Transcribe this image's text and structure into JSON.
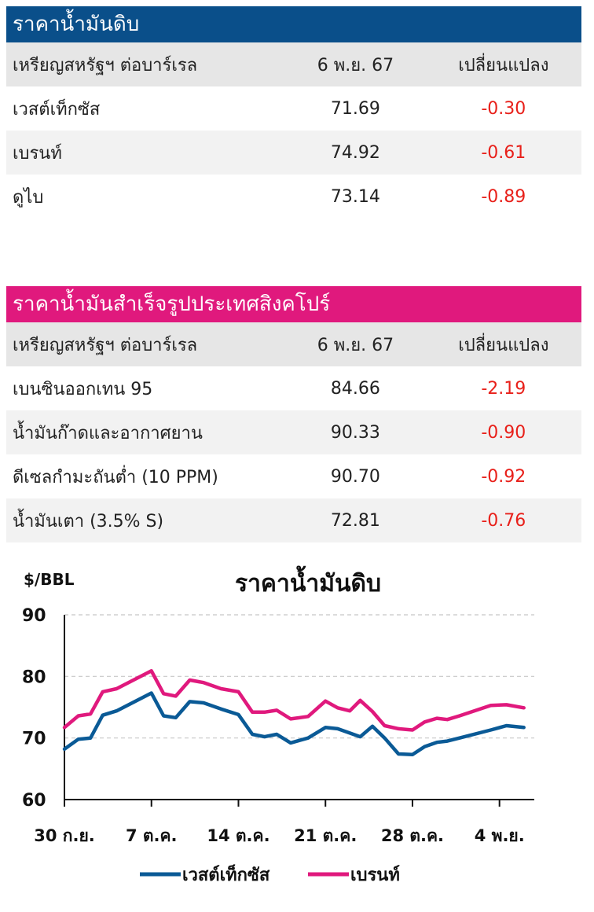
{
  "crude_table": {
    "title": "ราคาน้ำมันดิบ",
    "header": {
      "name": "เหรียญสหรัฐฯ ต่อบาร์เรล",
      "date": "6 พ.ย. 67",
      "change": "เปลี่ยนแปลง"
    },
    "rows": [
      {
        "name": "เวสต์เท็กซัส",
        "value": "71.69",
        "change": "-0.30"
      },
      {
        "name": "เบรนท์",
        "value": "74.92",
        "change": "-0.61"
      },
      {
        "name": "ดูไบ",
        "value": "73.14",
        "change": "-0.89"
      }
    ]
  },
  "refined_table": {
    "title": "ราคาน้ำมันสำเร็จรูปประเทศสิงคโปร์",
    "header": {
      "name": "เหรียญสหรัฐฯ ต่อบาร์เรล",
      "date": "6 พ.ย. 67",
      "change": "เปลี่ยนแปลง"
    },
    "rows": [
      {
        "name": "เบนซินออกเทน 95",
        "value": "84.66",
        "change": "-2.19"
      },
      {
        "name": "น้ำมันก๊าดและอากาศยาน",
        "value": "90.33",
        "change": "-0.90"
      },
      {
        "name": "ดีเซลกำมะถันต่ำ (10 PPM)",
        "value": "90.70",
        "change": "-0.92"
      },
      {
        "name": "น้ำมันเตา (3.5% S)",
        "value": "72.81",
        "change": "-0.76"
      }
    ]
  },
  "colors": {
    "crude_header": "#0a4f8a",
    "refined_header": "#e0197d",
    "negative": "#e8201a",
    "wti_line": "#0a5a96",
    "brent_line": "#e0197d"
  },
  "chart_data": {
    "type": "line",
    "title": "ราคาน้ำมันดิบ",
    "ylabel": "$/BBL",
    "ylim": [
      60,
      90
    ],
    "yticks": [
      60,
      70,
      80,
      90
    ],
    "xlim": [
      0,
      27
    ],
    "xticks": [
      {
        "x": 0,
        "label": "30 ก.ย."
      },
      {
        "x": 5,
        "label": "7 ต.ค."
      },
      {
        "x": 10,
        "label": "14 ต.ค."
      },
      {
        "x": 15,
        "label": "21 ต.ค."
      },
      {
        "x": 20,
        "label": "28 ต.ค."
      },
      {
        "x": 25,
        "label": "4 พ.ย."
      }
    ],
    "grid": "horizontal dashed",
    "legend_position": "bottom",
    "x": [
      0,
      0.8,
      1.5,
      2.2,
      3,
      5,
      5.7,
      6.4,
      7.2,
      8,
      9,
      10,
      10.8,
      11.5,
      12.2,
      13,
      14,
      15,
      15.7,
      16.4,
      17,
      17.7,
      18.4,
      19.2,
      20,
      20.7,
      21.4,
      22,
      22.7,
      24.5,
      25.4,
      26.4
    ],
    "series": [
      {
        "name": "เวสต์เท็กซัส",
        "values": [
          68.2,
          69.8,
          70.0,
          73.7,
          74.4,
          77.3,
          73.6,
          73.3,
          75.9,
          75.7,
          74.7,
          73.8,
          70.6,
          70.2,
          70.6,
          69.2,
          70.0,
          71.7,
          71.5,
          70.8,
          70.2,
          71.9,
          70.0,
          67.4,
          67.3,
          68.6,
          69.3,
          69.5,
          70.0,
          71.3,
          72.0,
          71.7
        ]
      },
      {
        "name": "เบรนท์",
        "values": [
          71.7,
          73.6,
          73.9,
          77.5,
          78.0,
          80.9,
          77.2,
          76.8,
          79.4,
          79.0,
          78.0,
          77.5,
          74.2,
          74.2,
          74.5,
          73.1,
          73.5,
          76.0,
          74.9,
          74.4,
          76.1,
          74.3,
          72.0,
          71.5,
          71.3,
          72.6,
          73.2,
          73.0,
          73.6,
          75.3,
          75.4,
          74.9
        ]
      }
    ]
  }
}
